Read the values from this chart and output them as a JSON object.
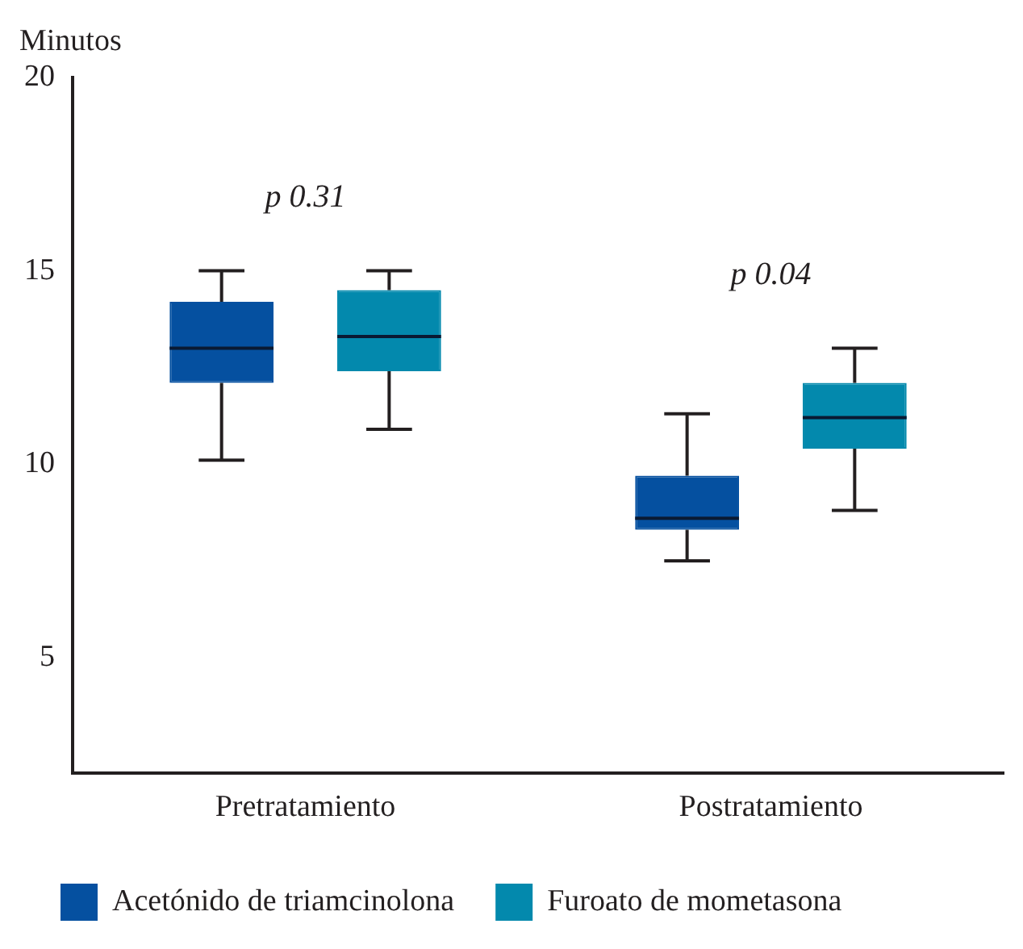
{
  "chart_data": {
    "type": "box",
    "ylabel": "Minutos",
    "categories": [
      "Pretratamiento",
      "Postratamiento"
    ],
    "ylim": [
      2,
      20
    ],
    "yticks": [
      5,
      10,
      15,
      20
    ],
    "legend": "bottom",
    "series": [
      {
        "name": "Acetónido de triamcinolona",
        "color": "#0550a0",
        "boxes": [
          {
            "low": 10.1,
            "q1": 12.1,
            "median": 13.0,
            "q3": 14.2,
            "high": 15.0
          },
          {
            "low": 7.5,
            "q1": 8.3,
            "median": 8.6,
            "q3": 9.7,
            "high": 11.3
          }
        ]
      },
      {
        "name": "Furoato de mometasona",
        "color": "#0389ad",
        "boxes": [
          {
            "low": 10.9,
            "q1": 12.4,
            "median": 13.3,
            "q3": 14.5,
            "high": 15.0
          },
          {
            "low": 8.8,
            "q1": 10.4,
            "median": 11.2,
            "q3": 12.1,
            "high": 13.0
          }
        ]
      }
    ],
    "annotations": [
      "p 0.31",
      "p 0.04"
    ]
  }
}
